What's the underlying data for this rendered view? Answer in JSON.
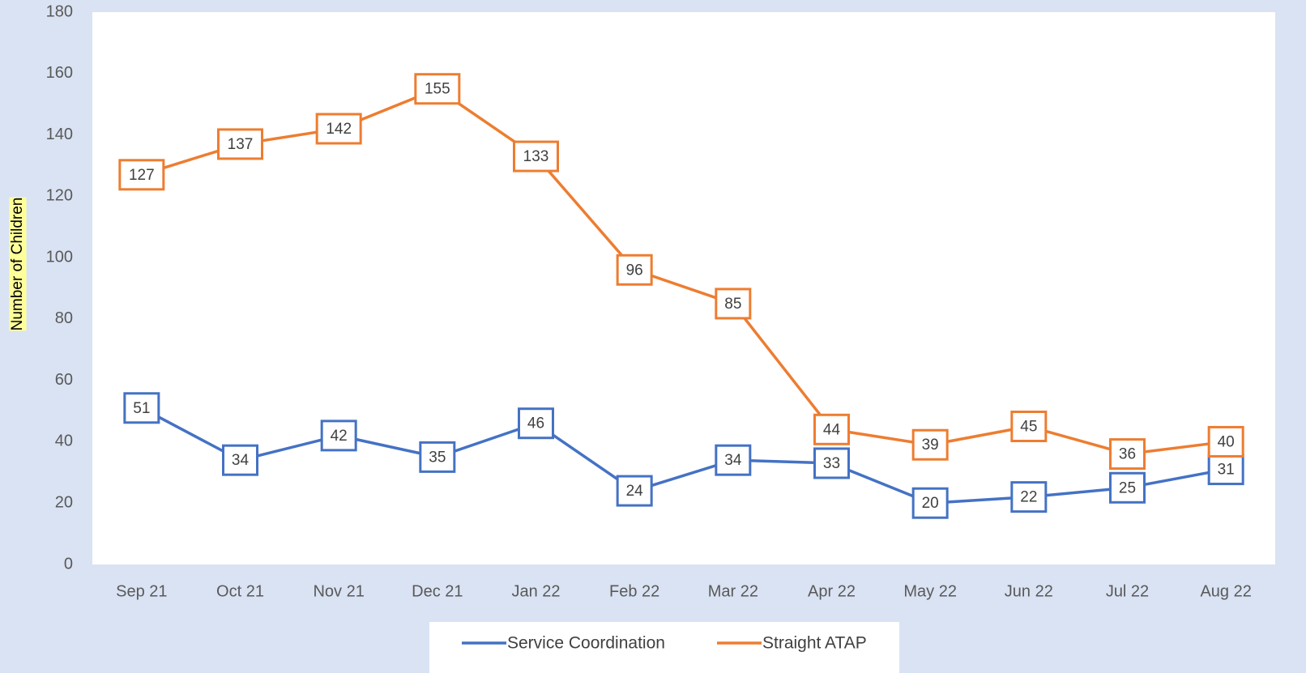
{
  "chart_data": {
    "type": "line",
    "ylabel": "Number of Children",
    "categories": [
      "Sep 21",
      "Oct 21",
      "Nov 21",
      "Dec 21",
      "Jan 22",
      "Feb 22",
      "Mar 22",
      "Apr 22",
      "May 22",
      "Jun 22",
      "Jul 22",
      "Aug 22"
    ],
    "series": [
      {
        "name": "Service Coordination",
        "color": "#4472c4",
        "values": [
          51,
          34,
          42,
          35,
          46,
          24,
          34,
          33,
          20,
          22,
          25,
          31
        ]
      },
      {
        "name": "Straight ATAP",
        "color": "#ed7d31",
        "values": [
          127,
          137,
          142,
          155,
          133,
          96,
          85,
          44,
          39,
          45,
          36,
          40
        ]
      }
    ],
    "ylim": [
      0,
      180
    ],
    "yticks": [
      0,
      20,
      40,
      60,
      80,
      100,
      120,
      140,
      160,
      180
    ],
    "legend": "bottom"
  }
}
